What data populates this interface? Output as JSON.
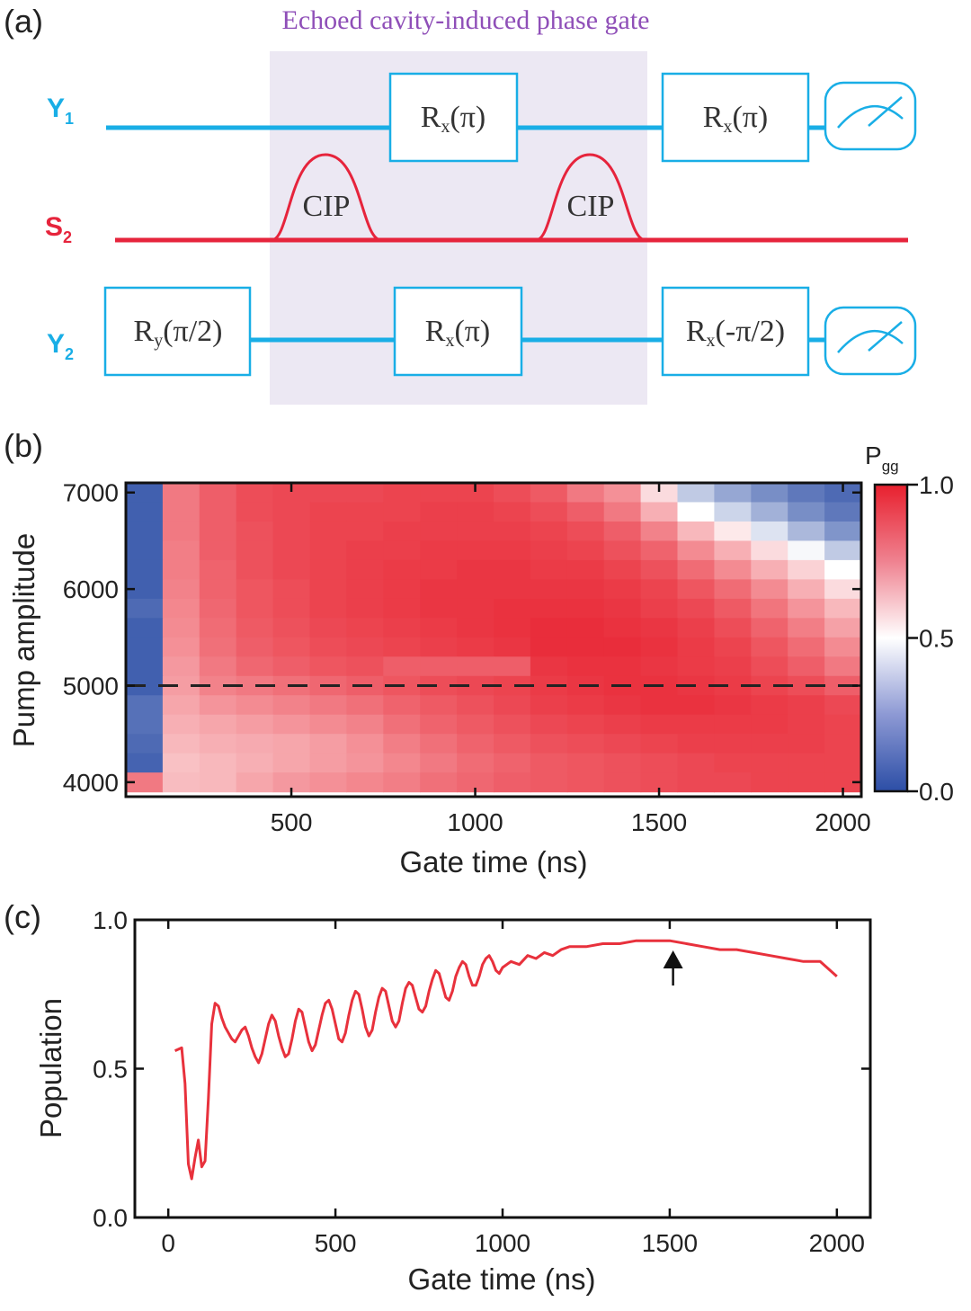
{
  "panel_labels": {
    "a": "(a)",
    "b": "(b)",
    "c": "(c)"
  },
  "colors": {
    "qubit": "#19aee6",
    "storage": "#e6243c",
    "shade": "#ece8f3",
    "title": "#8f4fb8",
    "trace": "#e8313c"
  },
  "circuit": {
    "title": "Echoed cavity-induced phase gate",
    "wires": [
      {
        "label": "Y",
        "sub": "1",
        "color": "#19aee6"
      },
      {
        "label": "S",
        "sub": "2",
        "color": "#e6243c"
      },
      {
        "label": "Y",
        "sub": "2",
        "color": "#19aee6"
      }
    ],
    "gates": {
      "y1_g1": {
        "base": "R",
        "sub": "x",
        "arg": "(π)"
      },
      "y1_g2": {
        "base": "R",
        "sub": "x",
        "arg": "(π)"
      },
      "y2_g0": {
        "base": "R",
        "sub": "y",
        "arg": "(π/2)"
      },
      "y2_g1": {
        "base": "R",
        "sub": "x",
        "arg": "(π)"
      },
      "y2_g2": {
        "base": "R",
        "sub": "x",
        "arg": "(-π/2)"
      }
    },
    "pulses": [
      "CIP",
      "CIP"
    ],
    "measurements": [
      "meter-icon",
      "meter-icon"
    ]
  },
  "heatmap": {
    "type": "heatmap",
    "xlabel": "Gate time (ns)",
    "ylabel": "Pump amplitude",
    "x_ticks": [
      "500",
      "1000",
      "1500",
      "2000"
    ],
    "y_ticks": [
      "7000",
      "6000",
      "5000",
      "4000"
    ],
    "xlim": [
      50,
      2050
    ],
    "ylim": [
      3850,
      7100
    ],
    "x_centers": [
      100,
      200,
      300,
      400,
      500,
      600,
      700,
      800,
      900,
      1000,
      1100,
      1200,
      1300,
      1400,
      1500,
      1600,
      1700,
      1800,
      1900,
      2000
    ],
    "y_centers": [
      7000,
      6800,
      6600,
      6400,
      6200,
      6000,
      5800,
      5600,
      5400,
      5200,
      5000,
      4800,
      4600,
      4400,
      4200,
      4000
    ],
    "dashed_line_y": 5000,
    "colorbar": {
      "label": "P",
      "sub": "gg",
      "ticks": [
        "1.0",
        "0.5",
        "0.0"
      ],
      "range": [
        0,
        1
      ]
    },
    "values": [
      [
        0.05,
        0.8,
        0.86,
        0.9,
        0.91,
        0.91,
        0.91,
        0.92,
        0.92,
        0.92,
        0.9,
        0.87,
        0.8,
        0.75,
        0.58,
        0.35,
        0.25,
        0.18,
        0.12,
        0.08
      ],
      [
        0.05,
        0.8,
        0.86,
        0.9,
        0.91,
        0.92,
        0.92,
        0.92,
        0.93,
        0.93,
        0.92,
        0.9,
        0.86,
        0.8,
        0.68,
        0.5,
        0.38,
        0.28,
        0.18,
        0.12
      ],
      [
        0.05,
        0.8,
        0.86,
        0.89,
        0.91,
        0.92,
        0.92,
        0.93,
        0.93,
        0.93,
        0.93,
        0.92,
        0.9,
        0.86,
        0.78,
        0.66,
        0.55,
        0.42,
        0.3,
        0.2
      ],
      [
        0.05,
        0.79,
        0.86,
        0.89,
        0.91,
        0.92,
        0.93,
        0.93,
        0.94,
        0.94,
        0.94,
        0.93,
        0.92,
        0.89,
        0.85,
        0.76,
        0.68,
        0.58,
        0.48,
        0.35
      ],
      [
        0.05,
        0.79,
        0.85,
        0.89,
        0.91,
        0.92,
        0.93,
        0.94,
        0.94,
        0.95,
        0.95,
        0.94,
        0.94,
        0.92,
        0.89,
        0.83,
        0.76,
        0.68,
        0.6,
        0.5
      ],
      [
        0.05,
        0.78,
        0.85,
        0.88,
        0.9,
        0.92,
        0.93,
        0.94,
        0.95,
        0.95,
        0.95,
        0.95,
        0.95,
        0.94,
        0.92,
        0.88,
        0.83,
        0.76,
        0.68,
        0.58
      ],
      [
        0.08,
        0.77,
        0.84,
        0.88,
        0.9,
        0.92,
        0.93,
        0.94,
        0.95,
        0.95,
        0.96,
        0.96,
        0.96,
        0.95,
        0.93,
        0.91,
        0.87,
        0.81,
        0.74,
        0.66
      ],
      [
        0.05,
        0.76,
        0.83,
        0.87,
        0.89,
        0.91,
        0.92,
        0.93,
        0.94,
        0.95,
        0.96,
        0.97,
        0.97,
        0.96,
        0.95,
        0.93,
        0.9,
        0.85,
        0.79,
        0.71
      ],
      [
        0.05,
        0.75,
        0.82,
        0.86,
        0.88,
        0.9,
        0.91,
        0.92,
        0.93,
        0.94,
        0.95,
        0.97,
        0.97,
        0.97,
        0.96,
        0.94,
        0.92,
        0.88,
        0.83,
        0.76
      ],
      [
        0.05,
        0.73,
        0.8,
        0.84,
        0.86,
        0.88,
        0.89,
        0.86,
        0.86,
        0.86,
        0.86,
        0.95,
        0.96,
        0.96,
        0.95,
        0.94,
        0.93,
        0.9,
        0.86,
        0.8
      ],
      [
        0.05,
        0.72,
        0.78,
        0.8,
        0.82,
        0.84,
        0.86,
        0.88,
        0.9,
        0.91,
        0.92,
        0.94,
        0.95,
        0.96,
        0.96,
        0.95,
        0.94,
        0.92,
        0.9,
        0.86
      ],
      [
        0.1,
        0.7,
        0.74,
        0.76,
        0.78,
        0.8,
        0.82,
        0.85,
        0.87,
        0.89,
        0.91,
        0.93,
        0.94,
        0.95,
        0.96,
        0.96,
        0.95,
        0.94,
        0.93,
        0.91
      ],
      [
        0.1,
        0.68,
        0.7,
        0.72,
        0.74,
        0.76,
        0.78,
        0.82,
        0.85,
        0.87,
        0.89,
        0.91,
        0.92,
        0.93,
        0.94,
        0.94,
        0.94,
        0.94,
        0.93,
        0.92
      ],
      [
        0.08,
        0.66,
        0.68,
        0.69,
        0.7,
        0.72,
        0.75,
        0.79,
        0.82,
        0.85,
        0.87,
        0.89,
        0.9,
        0.91,
        0.92,
        0.93,
        0.93,
        0.93,
        0.93,
        0.92
      ],
      [
        0.06,
        0.64,
        0.66,
        0.68,
        0.7,
        0.72,
        0.74,
        0.77,
        0.8,
        0.83,
        0.85,
        0.87,
        0.88,
        0.89,
        0.9,
        0.91,
        0.92,
        0.92,
        0.92,
        0.92
      ],
      [
        0.8,
        0.65,
        0.66,
        0.7,
        0.73,
        0.75,
        0.77,
        0.79,
        0.82,
        0.84,
        0.86,
        0.87,
        0.88,
        0.89,
        0.9,
        0.91,
        0.91,
        0.92,
        0.92,
        0.92
      ]
    ]
  },
  "chart_data": {
    "type": "line",
    "xlabel": "Gate time (ns)",
    "ylabel": "Population",
    "x_ticks": [
      "0",
      "500",
      "1000",
      "1500",
      "2000"
    ],
    "y_ticks": [
      "1.0",
      "0.5",
      "0.0"
    ],
    "xlim": [
      -100,
      2100
    ],
    "ylim": [
      0,
      1
    ],
    "arrow_x": 1510,
    "x": [
      20,
      40,
      50,
      60,
      70,
      80,
      90,
      100,
      110,
      120,
      130,
      140,
      150,
      160,
      170,
      180,
      190,
      200,
      210,
      220,
      230,
      240,
      250,
      260,
      270,
      280,
      290,
      300,
      310,
      320,
      330,
      340,
      350,
      360,
      370,
      380,
      390,
      400,
      410,
      420,
      430,
      440,
      450,
      460,
      470,
      480,
      490,
      500,
      510,
      520,
      530,
      540,
      550,
      560,
      570,
      580,
      590,
      600,
      610,
      620,
      630,
      640,
      650,
      660,
      670,
      680,
      690,
      700,
      710,
      720,
      730,
      740,
      750,
      760,
      770,
      780,
      790,
      800,
      810,
      820,
      830,
      840,
      850,
      860,
      870,
      880,
      890,
      900,
      910,
      920,
      930,
      940,
      950,
      960,
      970,
      980,
      990,
      1000,
      1025,
      1050,
      1075,
      1100,
      1125,
      1150,
      1175,
      1200,
      1250,
      1300,
      1350,
      1400,
      1450,
      1500,
      1550,
      1600,
      1650,
      1700,
      1750,
      1800,
      1850,
      1900,
      1950,
      2000
    ],
    "y": [
      0.56,
      0.57,
      0.45,
      0.18,
      0.13,
      0.2,
      0.26,
      0.17,
      0.19,
      0.4,
      0.65,
      0.72,
      0.71,
      0.67,
      0.64,
      0.62,
      0.6,
      0.59,
      0.61,
      0.63,
      0.64,
      0.61,
      0.57,
      0.54,
      0.52,
      0.55,
      0.6,
      0.65,
      0.68,
      0.66,
      0.61,
      0.57,
      0.54,
      0.55,
      0.6,
      0.66,
      0.7,
      0.69,
      0.64,
      0.59,
      0.56,
      0.58,
      0.63,
      0.68,
      0.72,
      0.73,
      0.7,
      0.65,
      0.6,
      0.59,
      0.62,
      0.68,
      0.73,
      0.76,
      0.75,
      0.7,
      0.64,
      0.61,
      0.63,
      0.69,
      0.74,
      0.77,
      0.76,
      0.71,
      0.66,
      0.64,
      0.66,
      0.72,
      0.77,
      0.79,
      0.78,
      0.74,
      0.7,
      0.69,
      0.71,
      0.76,
      0.8,
      0.83,
      0.82,
      0.78,
      0.74,
      0.73,
      0.76,
      0.81,
      0.84,
      0.86,
      0.85,
      0.81,
      0.78,
      0.78,
      0.81,
      0.85,
      0.87,
      0.88,
      0.86,
      0.83,
      0.82,
      0.84,
      0.86,
      0.85,
      0.88,
      0.87,
      0.89,
      0.88,
      0.9,
      0.91,
      0.91,
      0.92,
      0.92,
      0.93,
      0.93,
      0.93,
      0.92,
      0.91,
      0.9,
      0.9,
      0.89,
      0.88,
      0.87,
      0.86,
      0.86,
      0.81
    ]
  }
}
